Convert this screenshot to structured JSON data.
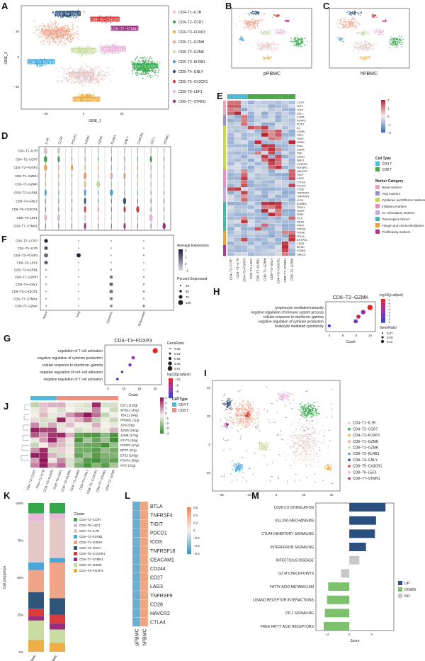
{
  "clusters": [
    {
      "name": "CD4−T1−IL7R",
      "color": "#e4c8c8"
    },
    {
      "name": "CD4−T2−CCR7",
      "color": "#36a84c"
    },
    {
      "name": "CD4−T3−FOXP3",
      "color": "#eeae45"
    },
    {
      "name": "CD8−T1−GZMH",
      "color": "#f0a58b"
    },
    {
      "name": "CD8−T2−GZMK",
      "color": "#c9dca2"
    },
    {
      "name": "CD8−T3−KLRB1",
      "color": "#48a7d8"
    },
    {
      "name": "CD8−T4−GNLY",
      "color": "#30557a"
    },
    {
      "name": "CD8−T5−CX3CR1",
      "color": "#d83c3c"
    },
    {
      "name": "CD8−T6−LEF1",
      "color": "#e9b5d8"
    },
    {
      "name": "CD8−T7−STMN1",
      "color": "#9c2c7e"
    }
  ],
  "panelA": {
    "letter": "A",
    "xlabel": "tSNE_1",
    "ylabel": "tSNE_2",
    "xticks": [
      "−20",
      "0",
      "20"
    ],
    "yticks": [
      "20",
      "0",
      "−20"
    ],
    "labels": [
      "CD8−T4−GNLY",
      "CD8−T5−CX3CR1",
      "CD8−T1−GZMH",
      "CD8−T7−STMN1",
      "CD8−T2−GZMK",
      "CD8−T6−LEF1",
      "CD8−T3−KLRB1",
      "CD4−T2−CCR7",
      "CD4−T1−IL7R",
      "CD4−T3−FOXP3"
    ]
  },
  "panelB": {
    "letter": "B",
    "caption": "pPBMC"
  },
  "panelC": {
    "letter": "C",
    "caption": "hPBMC"
  },
  "panelD": {
    "letter": "D",
    "genes": [
      "IL7R",
      "CCR7",
      "FOXP3",
      "GZMH",
      "GZMK",
      "KLRB1",
      "GNLY",
      "CX3CR1",
      "LEF1",
      "STMN1"
    ],
    "rows": [
      "CD4−T1−IL7R",
      "CD4−T2−CCR7",
      "CD4−T3−FOXP3",
      "CD8−T1−GZMH",
      "CD8−T2−GZMK",
      "CD8−T3−KLRB1",
      "CD8−T4−GNLY",
      "CD8−T5−CX3CR1",
      "CD8−T6−LEF1",
      "CD8−T7−STMN1"
    ]
  },
  "panelE": {
    "letter": "E",
    "columns": [
      "CD4−T2−CCR7",
      "CD4−T1−IL7R",
      "CD4−T3−FOXP3",
      "CD8−T6−LEF1",
      "CD8−T3−KLRB1",
      "CD8−T1−GZMH",
      "CD8−T4−GNLY",
      "CD8−T5−CX3CR1",
      "CD8−T7−STMN1",
      "CD8−T2−GZMK"
    ],
    "genes": [
      "CCR7",
      "LEF1",
      "TCF7",
      "SELL",
      "IL2RA",
      "FOXP3",
      "IKZF2",
      "IL2",
      "GZMB",
      "PRF1",
      "GNLY",
      "GZMK",
      "IFNG",
      "GZMA",
      "TNF",
      "GZMH",
      "NKG7",
      "CX3CR1",
      "FGFBP2",
      "HAVCR2",
      "TIGIT",
      "LAG3",
      "CTLA4",
      "PDCD1",
      "CD28",
      "TNFRSF9",
      "TNFRSF4",
      "ICOS",
      "EOMES",
      "TBX21",
      "HOPX",
      "ZEB2",
      "TOX",
      "NR4A",
      "PRF8",
      "TNFSE",
      "ITGAE",
      "ITGA1",
      "ENTPD1",
      "CD38",
      "MKI67",
      "STMN1",
      "UBE2C"
    ],
    "scale_ticks": [
      "2",
      "1",
      "0",
      "−1",
      "−2"
    ],
    "celltype_title": "Cell Type",
    "celltypes": [
      {
        "name": "CD4 T",
        "color": "#4fb9d8"
      },
      {
        "name": "CD8 T",
        "color": "#4aa847"
      }
    ],
    "marker_title": "Marker Category",
    "markers": [
      {
        "name": "Naive markers",
        "color": "#e9a3b7"
      },
      {
        "name": "Treg markers",
        "color": "#9b8fc7"
      },
      {
        "name": "Cytokines and Effector markers",
        "color": "#c9d652"
      },
      {
        "name": "Inhibitory markers",
        "color": "#e98bc8"
      },
      {
        "name": "Co−stimulatory markers",
        "color": "#c7a7e0"
      },
      {
        "name": "Transcription factors",
        "color": "#4fb0a4"
      },
      {
        "name": "Integrin and ectonucleotidases",
        "color": "#e8a23c"
      },
      {
        "name": "Proliferating markers",
        "color": "#a23b8e"
      }
    ]
  },
  "panelF": {
    "letter": "F",
    "rows": [
      "CD4−T2−CCR7",
      "CD4−T1−IL7R",
      "CD4−T3−FOXP3",
      "CD8−T6−LEF1",
      "CD8−T3−KLRB1",
      "CD8−T1−GZMH",
      "CD8−T4−GNLY",
      "CD8−T5−CX3CR1",
      "CD8−T7−STMN1",
      "CD8−T2−GZMK"
    ],
    "cols": [
      "Naive",
      "Treg",
      "Cytotoxic",
      "Exhaustion"
    ],
    "avg_title": "Average Expression",
    "avg_ticks": [
      "2",
      "1",
      "0",
      "−1"
    ],
    "pct_title": "Percent Expressed",
    "pct_values": [
      "25",
      "50",
      "75",
      "100"
    ]
  },
  "panelG": {
    "letter": "G",
    "title": "CD4−T3−FOXP3",
    "xlabel": "Count",
    "terms": [
      "regulation of T cell activation",
      "negative regulation of cytokine production",
      "cellular response to interferon−gamma",
      "negative regulation of cell−cell adhesion",
      "negative regulation of T cell activation"
    ],
    "counts": [
      20,
      13,
      12,
      9.5,
      8
    ],
    "generatio": [
      0.04,
      0.02,
      0.018,
      0.01,
      0.01
    ],
    "padj": [
      -10,
      -7,
      -6,
      -5,
      -4
    ],
    "xticks": [
      "5",
      "10",
      "15",
      "20"
    ],
    "size_title": "GeneRatio",
    "size_values": [
      "0.03",
      "0.04",
      "0.05",
      "0.06",
      "0.07"
    ],
    "color_title": "log10(p.adjust)",
    "color_ticks": [
      "−4",
      "−6",
      "−8",
      "−10"
    ]
  },
  "panelH": {
    "letter": "H",
    "title": "CD8−T2−GZMK",
    "xlabel": "Count",
    "terms": [
      "lymphocyte mediated immunity",
      "negative regulation of immune system process",
      "cellular response to interferon−gamma",
      "negative regulation of cytokine production",
      "leukocyte mediated cytotoxicity"
    ],
    "counts": [
      10,
      9,
      8.3,
      7.9,
      4
    ],
    "generatio": [
      0.11,
      0.09,
      0.08,
      0.08,
      0.05
    ],
    "padj": [
      -9,
      -5,
      -8,
      -4,
      -2
    ],
    "xticks": [
      "4",
      "6",
      "8",
      "10"
    ],
    "color_title": "log10(p.adjust)",
    "color_ticks": [
      "−9",
      "−8",
      "−7",
      "−6",
      "−5",
      "−4",
      "−3",
      "−2"
    ],
    "size_title": "GeneRatio",
    "size_values": [
      "0.07",
      "0.09",
      "0.11"
    ]
  },
  "panelI": {
    "letter": "I",
    "xticks": [
      "−40",
      "−20",
      "0",
      "20",
      "40"
    ],
    "yticks": [
      "40",
      "20",
      "0",
      "−20"
    ]
  },
  "panelJ": {
    "letter": "J",
    "genes": [
      "E2F1 (153g)",
      "MYBL2 (45g)",
      "TBX21 (84g)",
      "PRDM1 (11g)",
      "JUN (53g)",
      "JUND (244g)",
      "JUNB (173g)",
      "STAT1 (54g)",
      "FOXP3 (17g)",
      "BPTF (21g)",
      "ETS1 (165g)",
      "FOXP1 (83g)",
      "MYC (21g)"
    ],
    "columns": [
      "CD4−T2−CCR7",
      "CD4−T1−IL7R",
      "CD4−T3−FOXP3",
      "CD8−T6−LEF1",
      "CD8−T3−KLRB1",
      "CD8−T1−GZMH",
      "CD8−T4−GNLY",
      "CD8−T5−CX3CR1",
      "CD8−T7−STMN1",
      "CD8−T2−GZMK"
    ],
    "scale_ticks": [
      "3",
      "2",
      "1",
      "0",
      "−1",
      "−2",
      "−3",
      "−4"
    ],
    "celltype_title": "Cell Type",
    "celltypes": [
      {
        "name": "CD4 T",
        "color": "#4fb9d8"
      },
      {
        "name": "CD8 T",
        "color": "#f08f7e"
      }
    ]
  },
  "panelK": {
    "letter": "K",
    "ylabel": "Cell proportion",
    "legend_title": "Cluster",
    "yticks": [
      "100%",
      "75%",
      "50%",
      "25%",
      "0%"
    ],
    "samples": [
      "pPBMC",
      "hPBMC"
    ],
    "order": [
      "CD4−T2−CCR7",
      "CD8−T6−LEF1",
      "CD4−T1−IL7R",
      "CD8−T3−KLRB1",
      "CD8−T1−GZMH",
      "CD8−T4−GNLY",
      "CD8−T5−CX3CR1",
      "CD8−T7−STMN1",
      "CD8−T2−GZMK",
      "CD4−T3−FOXP3"
    ],
    "values": {
      "pPBMC": [
        0.07,
        0.05,
        0.28,
        0.05,
        0.15,
        0.11,
        0.05,
        0.03,
        0.13,
        0.08
      ],
      "hPBMC": [
        0.07,
        0.03,
        0.27,
        0.03,
        0.24,
        0.11,
        0.06,
        0.04,
        0.09,
        0.06
      ]
    }
  },
  "panelL": {
    "letter": "L",
    "genes": [
      "BTLA",
      "TNFRSF4",
      "TIGIT",
      "PDCD1",
      "ICOS",
      "TNFRSF18",
      "CEACAM1",
      "CD244",
      "CD27",
      "LAG3",
      "TNFRSF9",
      "CD28",
      "HAVCR2",
      "CTLA4"
    ],
    "columns": [
      "pPBMC",
      "hPBMC"
    ],
    "scale_ticks": [
      "0.6",
      "0.4",
      "0.2",
      "0",
      "−0.2",
      "−0.4",
      "−0.6"
    ]
  },
  "panelM": {
    "letter": "M",
    "xlabel": "Score",
    "pathways": [
      "CD28 CO STIMULATION",
      "KILLING MECHANISMS",
      "CTLA4 INHIBITORY SIGNALING",
      "INTERFERON SIGNALING",
      "INFECTIOUS DISEASE",
      "G2 M CHECKPOINTS",
      "FATTY ACID METABOLISM",
      "LIGAND RECEPTOR INTERACTIONS",
      "PD 1 SIGNALING",
      "FREE FATTY ACID RECEPTORS"
    ],
    "scores": [
      6.5,
      4.8,
      4.6,
      3.0,
      1.8,
      -1.5,
      -3.8,
      -4.0,
      -4.4,
      -4.6
    ],
    "status": [
      "UP",
      "UP",
      "UP",
      "UP",
      "NO",
      "NO",
      "DOWN",
      "DOWN",
      "DOWN",
      "DOWN"
    ],
    "xticks": [
      "−4",
      "0",
      "4"
    ],
    "legend": [
      {
        "name": "UP",
        "color": "#2b4f7f"
      },
      {
        "name": "DOWN",
        "color": "#7ec16c"
      },
      {
        "name": "NO",
        "color": "#c8c8c8"
      }
    ]
  }
}
